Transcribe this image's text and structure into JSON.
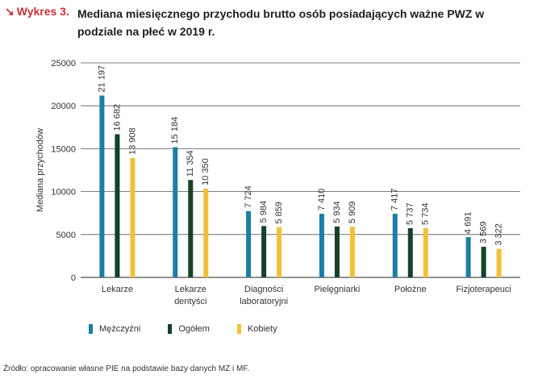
{
  "header": {
    "label": "Wykres 3.",
    "label_icon": "arrow-down-right-icon",
    "title": "Mediana miesięcznego przychodu brutto osób posiadających ważne PWZ w podziale na płeć w 2019 r."
  },
  "chart_data": {
    "type": "bar",
    "ylabel": "Mediana przychodów",
    "xlabel": "",
    "ylim": [
      0,
      25000
    ],
    "yticks": [
      "0",
      "5000",
      "10000",
      "15000",
      "20000",
      "25000"
    ],
    "ytick_values": [
      0,
      5000,
      10000,
      15000,
      20000,
      25000
    ],
    "grid": true,
    "legend_position": "bottom",
    "categories": [
      [
        "Lekarze"
      ],
      [
        "Lekarze",
        "dentyści"
      ],
      [
        "Diagności",
        "laboratoryjni"
      ],
      [
        "Pielęgniarki"
      ],
      [
        "Położne"
      ],
      [
        "Fizjoterapeuci"
      ]
    ],
    "series": [
      {
        "name": "Mężczyźni",
        "color": "#1a7fa6",
        "values": [
          21197,
          15184,
          7724,
          7410,
          7417,
          4691
        ],
        "labels": [
          "21 197",
          "15 184",
          "7 724",
          "7 410",
          "7 417",
          "4 691"
        ]
      },
      {
        "name": "Ogółem",
        "color": "#16402a",
        "values": [
          16682,
          11354,
          5984,
          5934,
          5737,
          3569
        ],
        "labels": [
          "16 682",
          "11 354",
          "5 984",
          "5 934",
          "5 737",
          "3 569"
        ]
      },
      {
        "name": "Kobiety",
        "color": "#f2c037",
        "values": [
          13908,
          10350,
          5859,
          5909,
          5734,
          3322
        ],
        "labels": [
          "13 908",
          "10 350",
          "5 859",
          "5 909",
          "5 734",
          "3 322"
        ]
      }
    ]
  },
  "source": "Źródło: opracowanie własne PIE na podstawie bazy danych MZ i MF."
}
